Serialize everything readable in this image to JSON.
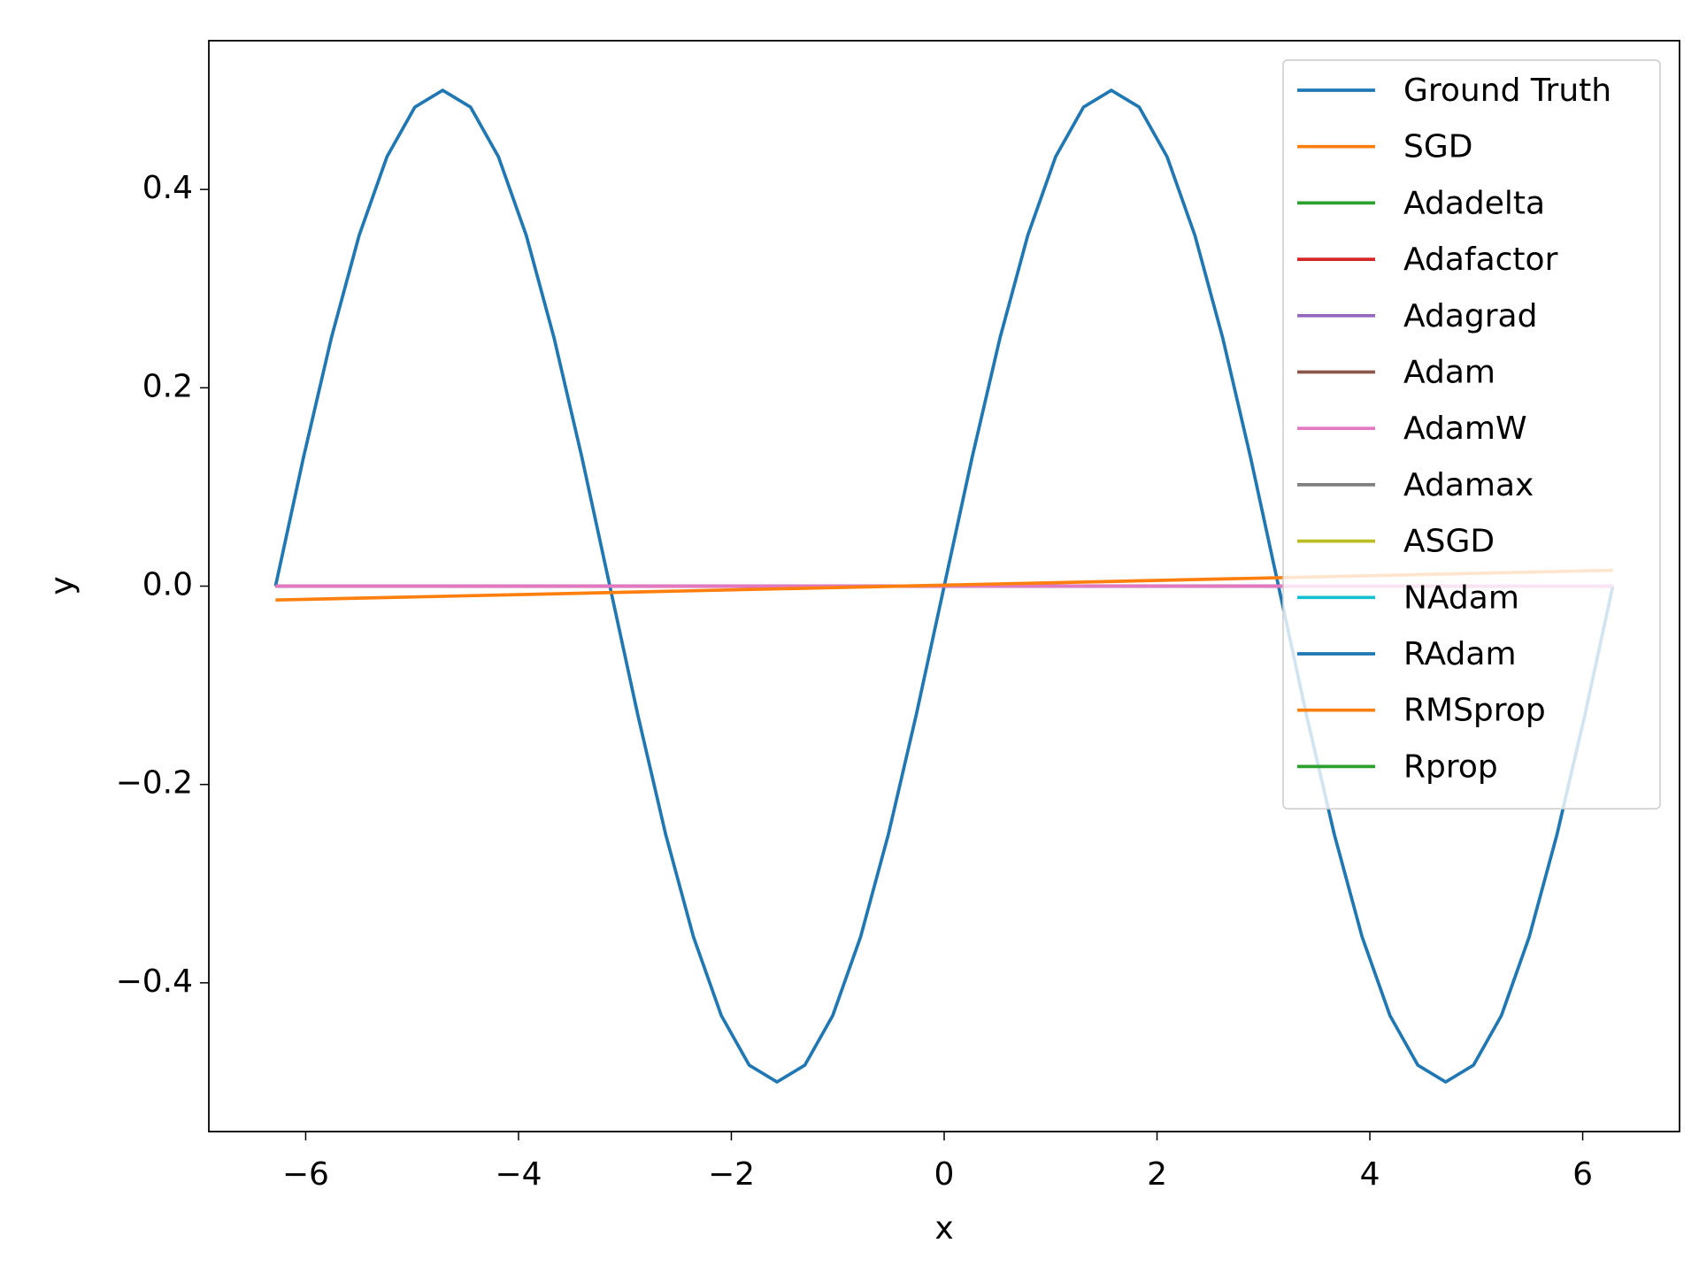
{
  "chart_data": {
    "type": "line",
    "xlabel": "x",
    "ylabel": "y",
    "xlim": [
      -6.91,
      6.91
    ],
    "ylim": [
      -0.55,
      0.55
    ],
    "xticks": [
      {
        "value": -6,
        "label": "−6"
      },
      {
        "value": -4,
        "label": "−4"
      },
      {
        "value": -2,
        "label": "−2"
      },
      0,
      2,
      4,
      6
    ],
    "yticks": [
      {
        "value": -0.4,
        "label": "−0.4"
      },
      {
        "value": -0.2,
        "label": "−0.2"
      },
      {
        "value": 0,
        "label": "0.0"
      },
      0.2,
      0.4
    ],
    "legend": "upper right",
    "series": [
      {
        "name": "Ground Truth",
        "color": "#1f77b4",
        "x": [
          -6.2832,
          -6.0214,
          -5.7596,
          -5.4978,
          -5.236,
          -4.9742,
          -4.7124,
          -4.4506,
          -4.1888,
          -3.927,
          -3.6652,
          -3.4034,
          -3.1416,
          -2.8798,
          -2.618,
          -2.3562,
          -2.0944,
          -1.8326,
          -1.5708,
          -1.309,
          -1.0472,
          -0.7854,
          -0.5236,
          -0.2618,
          0,
          0.2618,
          0.5236,
          0.7854,
          1.0472,
          1.309,
          1.5708,
          1.8326,
          2.0944,
          2.3562,
          2.618,
          2.8798,
          3.1416,
          3.4034,
          3.6652,
          3.927,
          4.1888,
          4.4506,
          4.7124,
          4.9742,
          5.236,
          5.4978,
          5.7596,
          6.0214,
          6.2832
        ],
        "values": [
          0,
          0.1294,
          0.25,
          0.3536,
          0.433,
          0.483,
          0.5,
          0.483,
          0.433,
          0.3536,
          0.25,
          0.1294,
          0,
          -0.1294,
          -0.25,
          -0.3536,
          -0.433,
          -0.483,
          -0.5,
          -0.483,
          -0.433,
          -0.3536,
          -0.25,
          -0.1294,
          0,
          0.1294,
          0.25,
          0.3536,
          0.433,
          0.483,
          0.5,
          0.483,
          0.433,
          0.3536,
          0.25,
          0.1294,
          0,
          -0.1294,
          -0.25,
          -0.3536,
          -0.433,
          -0.483,
          -0.5,
          -0.483,
          -0.433,
          -0.3536,
          -0.25,
          -0.1294,
          0
        ]
      },
      {
        "name": "SGD",
        "color": "#ff7f0e",
        "x": [
          -6.2832,
          6.2832
        ],
        "values": [
          0,
          0
        ]
      },
      {
        "name": "Adadelta",
        "color": "#2ca02c",
        "x": [
          -6.2832,
          6.2832
        ],
        "values": [
          0,
          0
        ]
      },
      {
        "name": "Adafactor",
        "color": "#d62728",
        "x": [
          -6.2832,
          6.2832
        ],
        "values": [
          0,
          0
        ]
      },
      {
        "name": "Adagrad",
        "color": "#9467bd",
        "x": [
          -6.2832,
          6.2832
        ],
        "values": [
          0,
          0
        ]
      },
      {
        "name": "Adam",
        "color": "#8c564b",
        "x": [
          -6.2832,
          6.2832
        ],
        "values": [
          0,
          0
        ]
      },
      {
        "name": "AdamW",
        "color": "#e377c2",
        "x": [
          -6.2832,
          6.2832
        ],
        "values": [
          0,
          0
        ]
      },
      {
        "name": "Adamax",
        "color": "#7f7f7f",
        "x": [
          -6.2832,
          6.2832
        ],
        "values": [
          null,
          null
        ]
      },
      {
        "name": "ASGD",
        "color": "#bcbd22",
        "x": [
          -6.2832,
          6.2832
        ],
        "values": [
          null,
          null
        ]
      },
      {
        "name": "NAdam",
        "color": "#17becf",
        "x": [
          -6.2832,
          6.2832
        ],
        "values": [
          null,
          null
        ]
      },
      {
        "name": "RAdam",
        "color": "#1f77b4",
        "x": [
          -6.2832,
          6.2832
        ],
        "values": [
          null,
          null
        ]
      },
      {
        "name": "RMSprop",
        "color": "#ff7f0e",
        "x": [
          -6.2832,
          6.2832
        ],
        "values": [
          -0.014,
          0.016
        ]
      },
      {
        "name": "Rprop",
        "color": "#2ca02c",
        "x": [
          -6.2832,
          6.2832
        ],
        "values": [
          null,
          null
        ]
      }
    ]
  }
}
